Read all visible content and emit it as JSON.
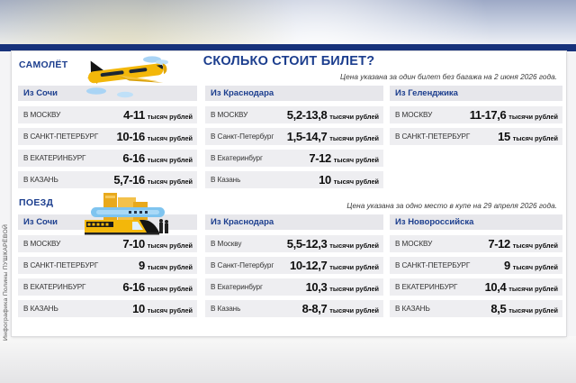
{
  "title": "СКОЛЬКО СТОИТ БИЛЕТ?",
  "attribution": "Инфографика Полины ПУШКАРЁВОЙ",
  "colors": {
    "navy": "#17327b",
    "blue": "#1c3e8e",
    "hdrbg": "#e7e7eb",
    "rowbg": "#eeeef1",
    "accent_yellow": "#f3b70a",
    "cloud_blue": "#a9d4f5"
  },
  "chart_data": [
    {
      "type": "table",
      "section": "САМОЛЁТ",
      "icon": "airplane-icon",
      "note": "Цена указана за один билет без багажа на 2 июня 2026 года.",
      "columns": [
        {
          "header": "Из Сочи",
          "rows": [
            {
              "to": "В МОСКВУ",
              "value": "4-11",
              "unit": "тысяч рублей"
            },
            {
              "to": "В САНКТ-ПЕТЕРБУРГ",
              "value": "10-16",
              "unit": "тысяч рублей"
            },
            {
              "to": "В ЕКАТЕРИНБУРГ",
              "value": "6-16",
              "unit": "тысяч рублей"
            },
            {
              "to": "В КАЗАНЬ",
              "value": "5,7-16",
              "unit": "тысяч рублей"
            }
          ]
        },
        {
          "header": "Из Краснодара",
          "rows": [
            {
              "to": "В МОСКВУ",
              "value": "5,2-13,8",
              "unit": "тысячи рублей"
            },
            {
              "to": "В Санкт-Петербург",
              "value": "1,5-14,7",
              "unit": "тысячи рублей"
            },
            {
              "to": "В Екатеринбург",
              "value": "7-12",
              "unit": "тысяч рублей"
            },
            {
              "to": "В Казань",
              "value": "10",
              "unit": "тысяч рублей"
            }
          ]
        },
        {
          "header": "Из Геленджика",
          "rows": [
            {
              "to": "В МОСКВУ",
              "value": "11-17,6",
              "unit": "тысячи рублей"
            },
            {
              "to": "В САНКТ-ПЕТЕРБУРГ",
              "value": "15",
              "unit": "тысяч рублей"
            }
          ]
        }
      ]
    },
    {
      "type": "table",
      "section": "ПОЕЗД",
      "icon": "train-icon",
      "note": "Цена указана за одно место в купе на 29 апреля 2026 года.",
      "columns": [
        {
          "header": "Из Сочи",
          "rows": [
            {
              "to": "В МОСКВУ",
              "value": "7-10",
              "unit": "тысяч рублей"
            },
            {
              "to": "В САНКТ-ПЕТЕРБУРГ",
              "value": "9",
              "unit": "тысяч рублей"
            },
            {
              "to": "В ЕКАТЕРИНБУРГ",
              "value": "6-16",
              "unit": "тысяч рублей"
            },
            {
              "to": "В КАЗАНЬ",
              "value": "10",
              "unit": "тысяч рублей"
            }
          ]
        },
        {
          "header": "Из Краснодара",
          "rows": [
            {
              "to": "В Москву",
              "value": "5,5-12,3",
              "unit": "тысячи рублей"
            },
            {
              "to": "В Санкт-Петербург",
              "value": "10-12,7",
              "unit": "тысячи рублей"
            },
            {
              "to": "В Екатеринбург",
              "value": "10,3",
              "unit": "тысячи рублей"
            },
            {
              "to": "В Казань",
              "value": "8-8,7",
              "unit": "тысячи рублей"
            }
          ]
        },
        {
          "header": "Из Новороссийска",
          "rows": [
            {
              "to": "В МОСКВУ",
              "value": "7-12",
              "unit": "тысяч рублей"
            },
            {
              "to": "В САНКТ-ПЕТЕРБУРГ",
              "value": "9",
              "unit": "тысяч рублей"
            },
            {
              "to": "В ЕКАТЕРИНБУРГ",
              "value": "10,4",
              "unit": "тысячи рублей"
            },
            {
              "to": "В КАЗАНЬ",
              "value": "8,5",
              "unit": "тысячи рублей"
            }
          ]
        }
      ]
    }
  ]
}
